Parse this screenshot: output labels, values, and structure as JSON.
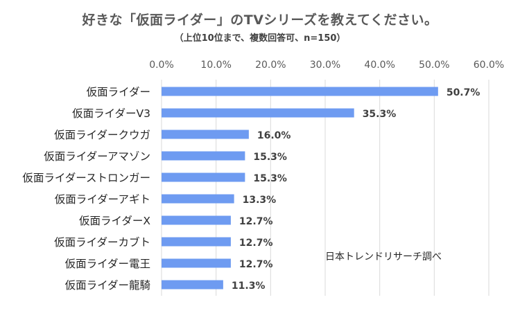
{
  "chart_data": {
    "type": "bar",
    "orientation": "horizontal",
    "title": "好きな「仮面ライダー」のTVシリーズを教えてください。",
    "subtitle": "（上位10位まで、複数回答可、n=150）",
    "xlabel": "",
    "ylabel": "",
    "xlim": [
      0,
      60
    ],
    "ticks": [
      "0.0%",
      "10.0%",
      "20.0%",
      "30.0%",
      "40.0%",
      "50.0%",
      "60.0%"
    ],
    "grid": true,
    "categories": [
      "仮面ライダー",
      "仮面ライダーV3",
      "仮面ライダークウガ",
      "仮面ライダーアマゾン",
      "仮面ライダーストロンガー",
      "仮面ライダーアギト",
      "仮面ライダーX",
      "仮面ライダーカブト",
      "仮面ライダー電王",
      "仮面ライダー龍騎"
    ],
    "values": [
      50.7,
      35.3,
      16.0,
      15.3,
      15.3,
      13.3,
      12.7,
      12.7,
      12.7,
      11.3
    ],
    "value_labels": [
      "50.7%",
      "35.3%",
      "16.0%",
      "15.3%",
      "15.3%",
      "13.3%",
      "12.7%",
      "12.7%",
      "12.7%",
      "11.3%"
    ],
    "bar_color": "#6E9BF1",
    "annotation": "日本トレンドリサーチ調べ"
  }
}
